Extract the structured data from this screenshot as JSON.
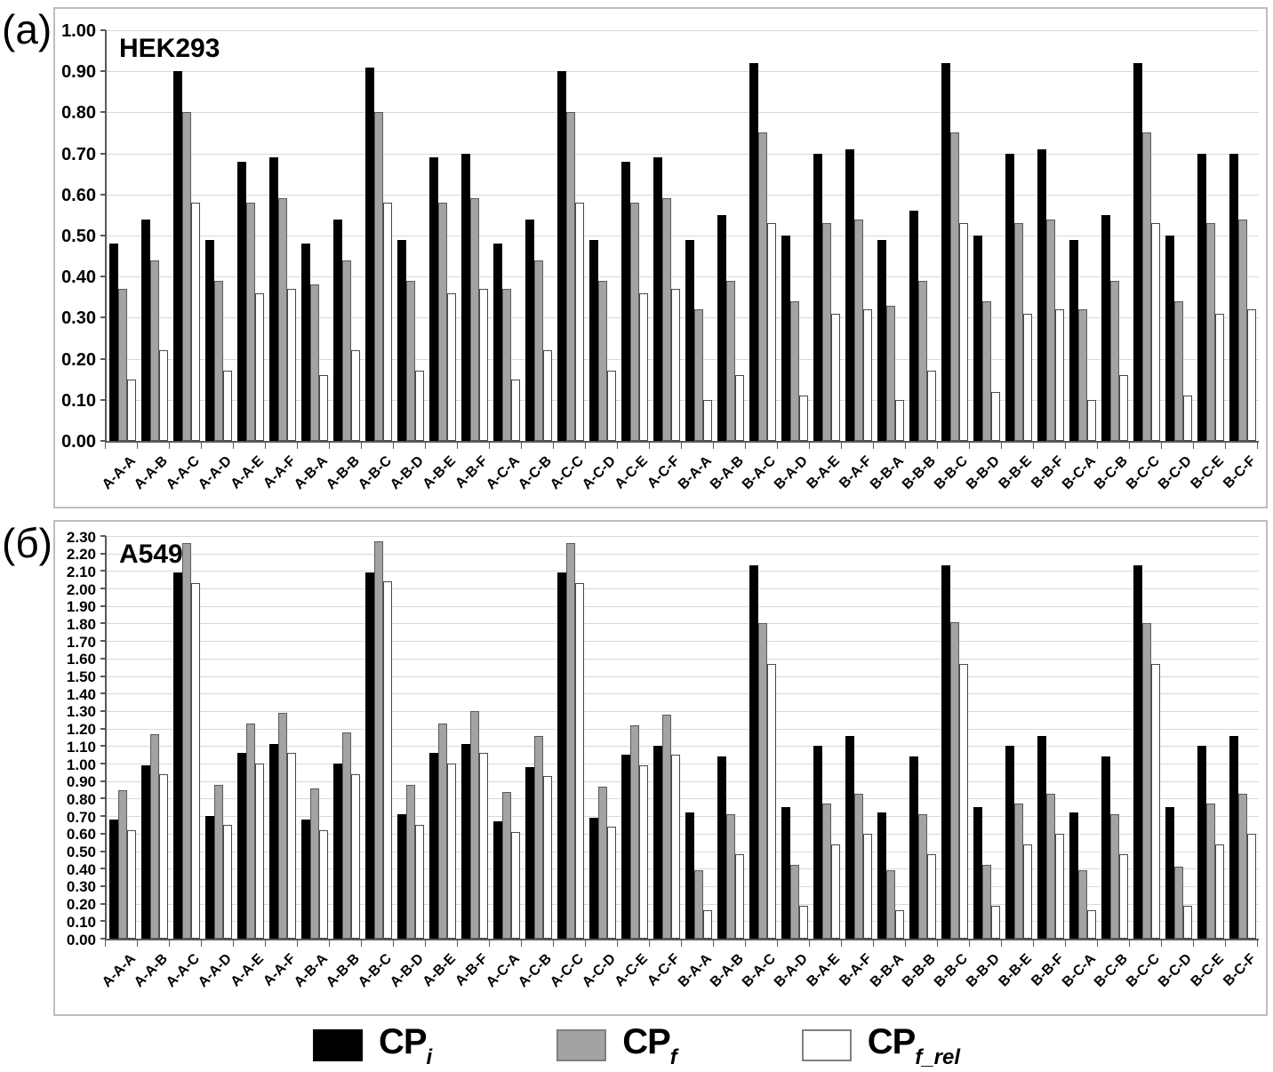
{
  "figure": {
    "panels": [
      {
        "letter": "(a)",
        "title": "HEK293"
      },
      {
        "letter": "(б)",
        "title": "A549"
      }
    ]
  },
  "legend": {
    "items": [
      {
        "main": "CP",
        "sub": "i",
        "swatch": "black"
      },
      {
        "main": "CP",
        "sub": "f",
        "swatch": "gray"
      },
      {
        "main": "CP",
        "sub": "f_rel",
        "swatch": "white"
      }
    ]
  },
  "colors": {
    "bar_black": "#000000",
    "bar_gray": "#a3a3a3",
    "bar_white": "#ffffff",
    "gridline": "#d9d9d9",
    "axis": "#595959",
    "frame": "#bdbdbd"
  },
  "chart_data": [
    {
      "type": "bar",
      "title": "HEK293",
      "panel_letter": "(a)",
      "grid": true,
      "legend_position": "bottom",
      "ylim": [
        0,
        1.0
      ],
      "ytick_step": 0.1,
      "ytick_labels": [
        "1.00",
        "0.90",
        "0.80",
        "0.70",
        "0.60",
        "0.50",
        "0.40",
        "0.30",
        "0.20",
        "0.10",
        "0.00"
      ],
      "categories": [
        "A-A-A",
        "A-A-B",
        "A-A-C",
        "A-A-D",
        "A-A-E",
        "A-A-F",
        "A-B-A",
        "A-B-B",
        "A-B-C",
        "A-B-D",
        "A-B-E",
        "A-B-F",
        "A-C-A",
        "A-C-B",
        "A-C-C",
        "A-C-D",
        "A-C-E",
        "A-C-F",
        "B-A-A",
        "B-A-B",
        "B-A-C",
        "B-A-D",
        "B-A-E",
        "B-A-F",
        "B-B-A",
        "B-B-B",
        "B-B-C",
        "B-B-D",
        "B-B-E",
        "B-B-F",
        "B-C-A",
        "B-C-B",
        "B-C-C",
        "B-C-D",
        "B-C-E",
        "B-C-F"
      ],
      "series": [
        {
          "name": "CP_i",
          "color": "#000000",
          "values": [
            0.48,
            0.54,
            0.9,
            0.49,
            0.68,
            0.69,
            0.48,
            0.54,
            0.91,
            0.49,
            0.69,
            0.7,
            0.48,
            0.54,
            0.9,
            0.49,
            0.68,
            0.69,
            0.49,
            0.55,
            0.92,
            0.5,
            0.7,
            0.71,
            0.49,
            0.56,
            0.92,
            0.5,
            0.7,
            0.71,
            0.49,
            0.55,
            0.92,
            0.5,
            0.7,
            0.7
          ]
        },
        {
          "name": "CP_f",
          "color": "#a3a3a3",
          "values": [
            0.37,
            0.44,
            0.8,
            0.39,
            0.58,
            0.59,
            0.38,
            0.44,
            0.8,
            0.39,
            0.58,
            0.59,
            0.37,
            0.44,
            0.8,
            0.39,
            0.58,
            0.59,
            0.32,
            0.39,
            0.75,
            0.34,
            0.53,
            0.54,
            0.33,
            0.39,
            0.75,
            0.34,
            0.53,
            0.54,
            0.32,
            0.39,
            0.75,
            0.34,
            0.53,
            0.54
          ]
        },
        {
          "name": "CP_f_rel",
          "color": "#ffffff",
          "values": [
            0.15,
            0.22,
            0.58,
            0.17,
            0.36,
            0.37,
            0.16,
            0.22,
            0.58,
            0.17,
            0.36,
            0.37,
            0.15,
            0.22,
            0.58,
            0.17,
            0.36,
            0.37,
            0.1,
            0.16,
            0.53,
            0.11,
            0.31,
            0.32,
            0.1,
            0.17,
            0.53,
            0.12,
            0.31,
            0.32,
            0.1,
            0.16,
            0.53,
            0.11,
            0.31,
            0.32
          ]
        }
      ]
    },
    {
      "type": "bar",
      "title": "A549",
      "panel_letter": "(б)",
      "grid": true,
      "legend_position": "bottom",
      "ylim": [
        0,
        2.3
      ],
      "ytick_step": 0.1,
      "ytick_labels": [
        "2.30",
        "2.20",
        "2.10",
        "2.00",
        "1.90",
        "1.80",
        "1.70",
        "1.60",
        "1.50",
        "1.40",
        "1.30",
        "1.20",
        "1.10",
        "1.00",
        "0.90",
        "0.80",
        "0.70",
        "0.60",
        "0.50",
        "0.40",
        "0.30",
        "0.20",
        "0.10",
        "0.00"
      ],
      "categories": [
        "A-A-A",
        "A-A-B",
        "A-A-C",
        "A-A-D",
        "A-A-E",
        "A-A-F",
        "A-B-A",
        "A-B-B",
        "A-B-C",
        "A-B-D",
        "A-B-E",
        "A-B-F",
        "A-C-A",
        "A-C-B",
        "A-C-C",
        "A-C-D",
        "A-C-E",
        "A-C-F",
        "B-A-A",
        "B-A-B",
        "B-A-C",
        "B-A-D",
        "B-A-E",
        "B-A-F",
        "B-B-A",
        "B-B-B",
        "B-B-C",
        "B-B-D",
        "B-B-E",
        "B-B-F",
        "B-C-A",
        "B-C-B",
        "B-C-C",
        "B-C-D",
        "B-C-E",
        "B-C-F"
      ],
      "series": [
        {
          "name": "CP_i",
          "color": "#000000",
          "values": [
            0.68,
            0.99,
            2.09,
            0.7,
            1.06,
            1.11,
            0.68,
            1.0,
            2.09,
            0.71,
            1.06,
            1.11,
            0.67,
            0.98,
            2.09,
            0.69,
            1.05,
            1.1,
            0.72,
            1.04,
            2.13,
            0.75,
            1.1,
            1.16,
            0.72,
            1.04,
            2.13,
            0.75,
            1.1,
            1.16,
            0.72,
            1.04,
            2.13,
            0.75,
            1.1,
            1.16
          ]
        },
        {
          "name": "CP_f",
          "color": "#a3a3a3",
          "values": [
            0.85,
            1.17,
            2.26,
            0.88,
            1.23,
            1.29,
            0.86,
            1.18,
            2.27,
            0.88,
            1.23,
            1.3,
            0.84,
            1.16,
            2.26,
            0.87,
            1.22,
            1.28,
            0.39,
            0.71,
            1.8,
            0.42,
            0.77,
            0.83,
            0.39,
            0.71,
            1.81,
            0.42,
            0.77,
            0.83,
            0.39,
            0.71,
            1.8,
            0.41,
            0.77,
            0.83
          ]
        },
        {
          "name": "CP_f_rel",
          "color": "#ffffff",
          "values": [
            0.62,
            0.94,
            2.03,
            0.65,
            1.0,
            1.06,
            0.62,
            0.94,
            2.04,
            0.65,
            1.0,
            1.06,
            0.61,
            0.93,
            2.03,
            0.64,
            0.99,
            1.05,
            0.16,
            0.48,
            1.57,
            0.19,
            0.54,
            0.6,
            0.16,
            0.48,
            1.57,
            0.19,
            0.54,
            0.6,
            0.16,
            0.48,
            1.57,
            0.19,
            0.54,
            0.6
          ]
        }
      ]
    }
  ]
}
